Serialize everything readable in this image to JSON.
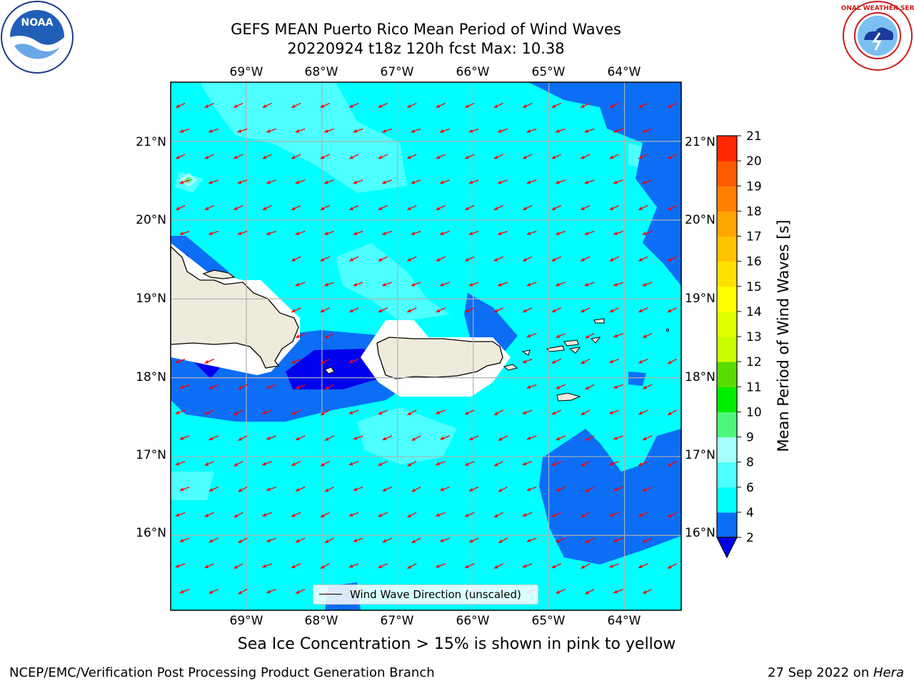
{
  "header": {
    "title_line1": "GEFS MEAN Puerto Rico Mean Period of Wind Waves",
    "title_line2": "20220924 t18z 120h fcst   Max: 10.38"
  },
  "logos": {
    "left": "noaa-logo",
    "right": "national-weather-service-logo",
    "left_text": "NOAA",
    "right_text": "NATIONAL WEATHER SERVICE"
  },
  "map": {
    "lon_labels": [
      "69°W",
      "68°W",
      "67°W",
      "66°W",
      "65°W",
      "64°W"
    ],
    "lat_labels": [
      "21°N",
      "20°N",
      "19°N",
      "18°N",
      "17°N",
      "16°N"
    ],
    "lon_range": [
      -70.0,
      -63.25
    ],
    "lat_range": [
      15.05,
      21.75
    ],
    "arrow_color": "#ff0000",
    "land_color": "#efebdc",
    "grid": true
  },
  "legend": {
    "label": "Wind Wave Direction (unscaled)"
  },
  "colorbar": {
    "title": "Mean Period of Wind Waves [s]",
    "tick_labels": [
      "2",
      "4",
      "6",
      "8",
      "9",
      "10",
      "11",
      "12",
      "13",
      "14",
      "15",
      "16",
      "17",
      "18",
      "19",
      "20",
      "21"
    ],
    "colors": [
      "#0b6ef5",
      "#00ffff",
      "#4dffff",
      "#a6ffff",
      "#4ef77b",
      "#00ee00",
      "#5bdc00",
      "#c8ff00",
      "#e4ff00",
      "#ffff00",
      "#ffe100",
      "#ffc300",
      "#ffa500",
      "#ff8000",
      "#ff5a00",
      "#ff2800"
    ],
    "extend_min_color": "#0000ee"
  },
  "notes": {
    "ice": "Sea Ice Concentration > 15% is shown in pink to yellow"
  },
  "footer": {
    "left": "NCEP/EMC/Verification Post Processing Product Generation Branch",
    "right_date": "27 Sep 2022 on ",
    "right_host": "Hera"
  }
}
